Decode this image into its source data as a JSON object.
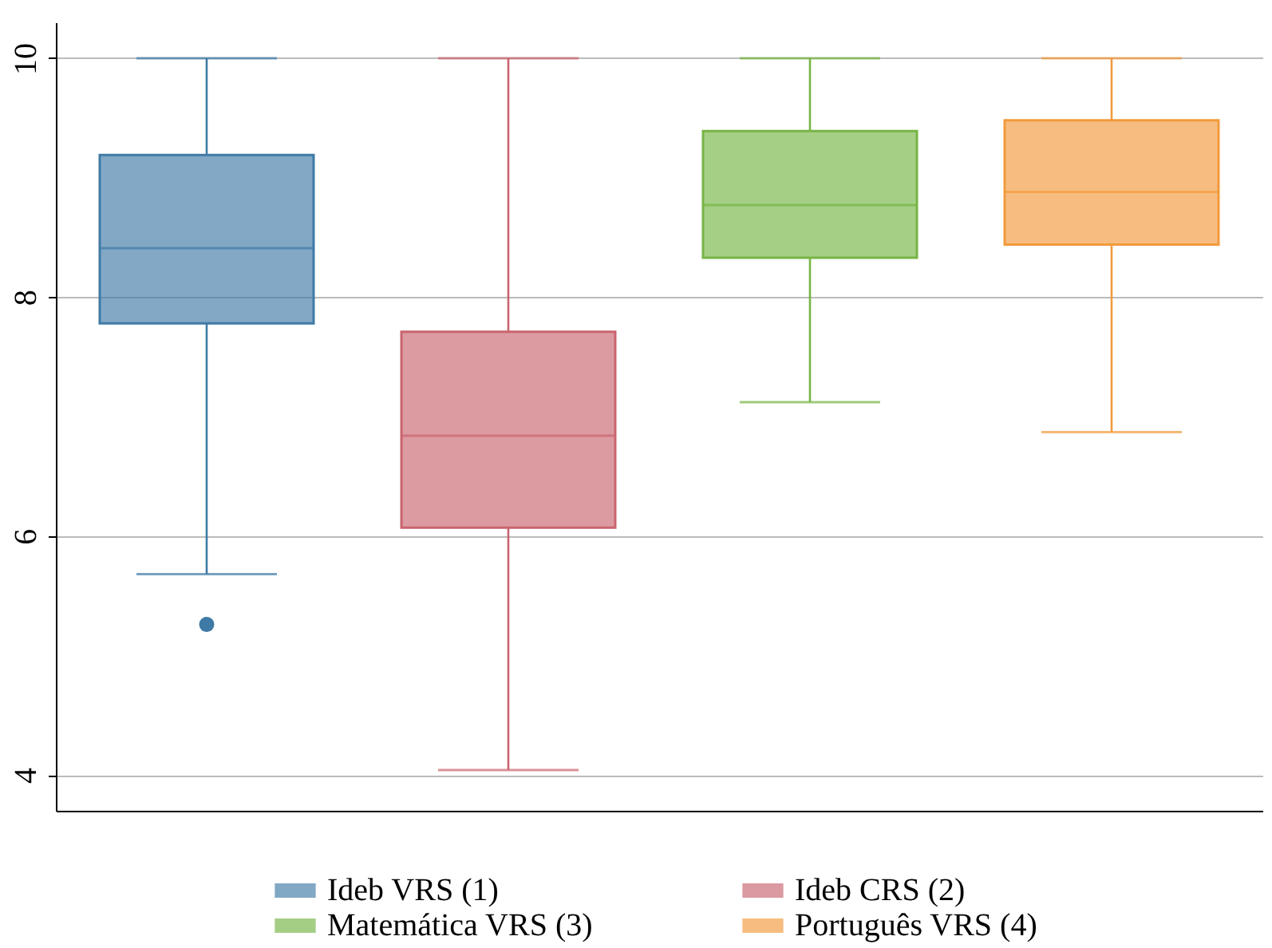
{
  "chart_data": {
    "type": "box",
    "categories": [
      null,
      null,
      null,
      null
    ],
    "ylim": [
      3.7,
      10.3
    ],
    "yticks": [
      4,
      6,
      8,
      10
    ],
    "grid": "y",
    "legend": "bottom",
    "series": [
      {
        "name": "Ideb VRS (1)",
        "color": "#3f7aa6",
        "boxes": [
          {
            "low": 5.68,
            "q1": 7.78,
            "median": 8.41,
            "q3": 9.19,
            "high": 10,
            "outliers": [
              5.26
            ]
          },
          null,
          null,
          null
        ]
      },
      {
        "name": "Ideb CRS (2)",
        "color": "#c9646f",
        "boxes": [
          null,
          {
            "low": 4.04,
            "q1": 6.07,
            "median": 6.84,
            "q3": 7.71,
            "high": 10
          },
          null,
          null
        ]
      },
      {
        "name": "Matemática VRS (3)",
        "color": "#76b545",
        "boxes": [
          null,
          null,
          {
            "low": 7.12,
            "q1": 8.33,
            "median": 8.77,
            "q3": 9.39,
            "high": 10
          },
          null
        ]
      },
      {
        "name": "Português VRS (4)",
        "color": "#f29a3c",
        "boxes": [
          null,
          null,
          null,
          {
            "low": 6.87,
            "q1": 8.44,
            "median": 8.88,
            "q3": 9.48,
            "high": 10
          }
        ]
      }
    ]
  }
}
